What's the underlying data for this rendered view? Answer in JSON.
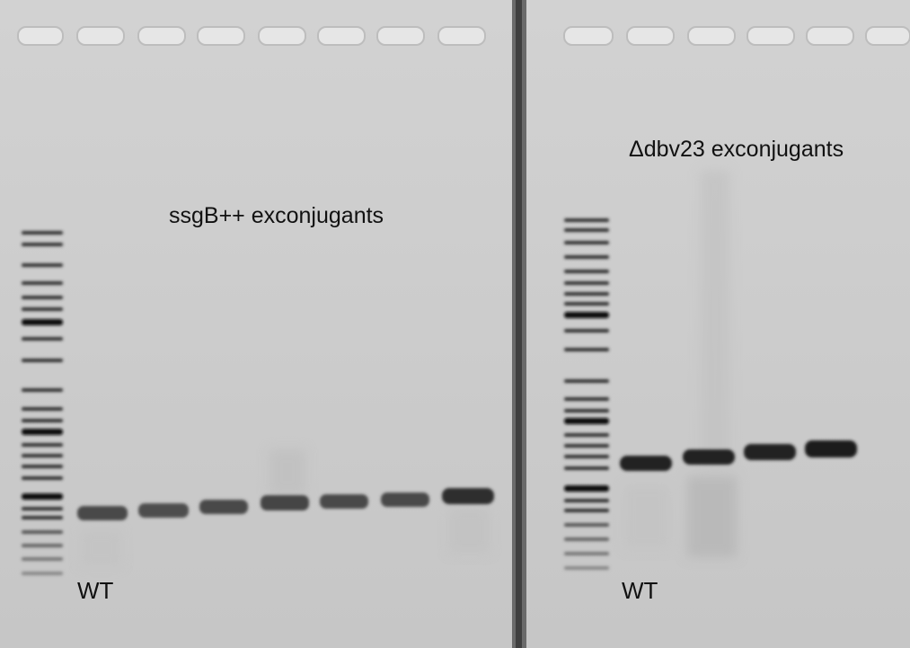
{
  "gel": {
    "left_panel": {
      "title": "ssgB++ exconjugants",
      "wt_label": "WT",
      "sample_lanes": 7
    },
    "right_panel": {
      "title": "Δdbv23 exconjugants",
      "wt_label": "WT",
      "sample_lanes": 4
    },
    "colors": {
      "gel_background": "#cdcdcd",
      "band": "#2a2a2a",
      "divider": "#4a4a4a",
      "label_text": "#111111"
    }
  }
}
